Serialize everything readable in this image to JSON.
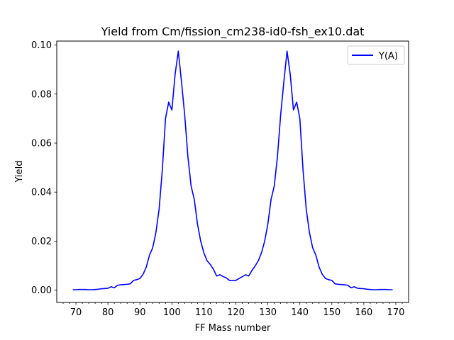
{
  "chart_data": {
    "type": "line",
    "title": "Yield from  Cm/fission_cm238-id0-fsh_ex10.dat",
    "xlabel": "FF Mass number",
    "ylabel": "Yield",
    "xlim": [
      64,
      174
    ],
    "ylim": [
      -0.005,
      0.1016
    ],
    "grid": false,
    "legend": "top-right",
    "x_major_ticks": [
      70,
      80,
      90,
      100,
      110,
      120,
      130,
      140,
      150,
      160,
      170
    ],
    "x_tick_labels": [
      "70",
      "80",
      "90",
      "100",
      "110",
      "120",
      "130",
      "140",
      "150",
      "160",
      "170"
    ],
    "y_ticks": [
      0.0,
      0.02,
      0.04,
      0.06,
      0.08,
      0.1
    ],
    "y_tick_labels": [
      "0.00",
      "0.02",
      "0.04",
      "0.06",
      "0.08",
      "0.10"
    ],
    "series": [
      {
        "name": "Y(A)",
        "color": "#0000ff",
        "x": [
          69,
          70,
          71,
          72,
          73,
          74,
          75,
          76,
          77,
          78,
          79,
          80,
          81,
          82,
          83,
          84,
          85,
          86,
          87,
          88,
          89,
          90,
          91,
          92,
          93,
          94,
          95,
          96,
          97,
          98,
          99,
          100,
          101,
          102,
          103,
          104,
          105,
          106,
          107,
          108,
          109,
          110,
          111,
          112,
          113,
          114,
          115,
          116,
          117,
          118,
          119,
          120,
          121,
          122,
          123,
          124,
          125,
          126,
          127,
          128,
          129,
          130,
          131,
          132,
          133,
          134,
          135,
          136,
          137,
          138,
          139,
          140,
          141,
          142,
          143,
          144,
          145,
          146,
          147,
          148,
          149,
          150,
          151,
          152,
          153,
          154,
          155,
          156,
          157,
          158,
          159,
          160,
          161,
          162,
          163,
          164,
          165,
          166,
          167,
          168,
          169
        ],
        "values": [
          0.0002,
          0.0002,
          0.0003,
          0.0003,
          0.0003,
          0.0002,
          0.0002,
          0.0003,
          0.0004,
          0.0006,
          0.0007,
          0.0008,
          0.0014,
          0.001,
          0.002,
          0.0022,
          0.0023,
          0.0024,
          0.0026,
          0.004,
          0.0043,
          0.0048,
          0.0065,
          0.0095,
          0.0143,
          0.0173,
          0.0235,
          0.033,
          0.049,
          0.07,
          0.0767,
          0.0735,
          0.088,
          0.0975,
          0.085,
          0.0715,
          0.0545,
          0.0425,
          0.037,
          0.027,
          0.02,
          0.0152,
          0.012,
          0.0105,
          0.0085,
          0.0058,
          0.0063,
          0.0056,
          0.005,
          0.004,
          0.004,
          0.004,
          0.0048,
          0.0055,
          0.0063,
          0.0058,
          0.008,
          0.0098,
          0.012,
          0.0152,
          0.02,
          0.027,
          0.037,
          0.0425,
          0.0545,
          0.0715,
          0.085,
          0.0975,
          0.088,
          0.0735,
          0.0767,
          0.07,
          0.049,
          0.033,
          0.0235,
          0.0173,
          0.0143,
          0.0095,
          0.0065,
          0.0048,
          0.0043,
          0.004,
          0.0026,
          0.0024,
          0.0023,
          0.0022,
          0.002,
          0.001,
          0.0014,
          0.0008,
          0.0007,
          0.0006,
          0.0004,
          0.0003,
          0.0002,
          0.0002,
          0.0003,
          0.0003,
          0.0003,
          0.0002,
          0.0002
        ]
      }
    ]
  }
}
